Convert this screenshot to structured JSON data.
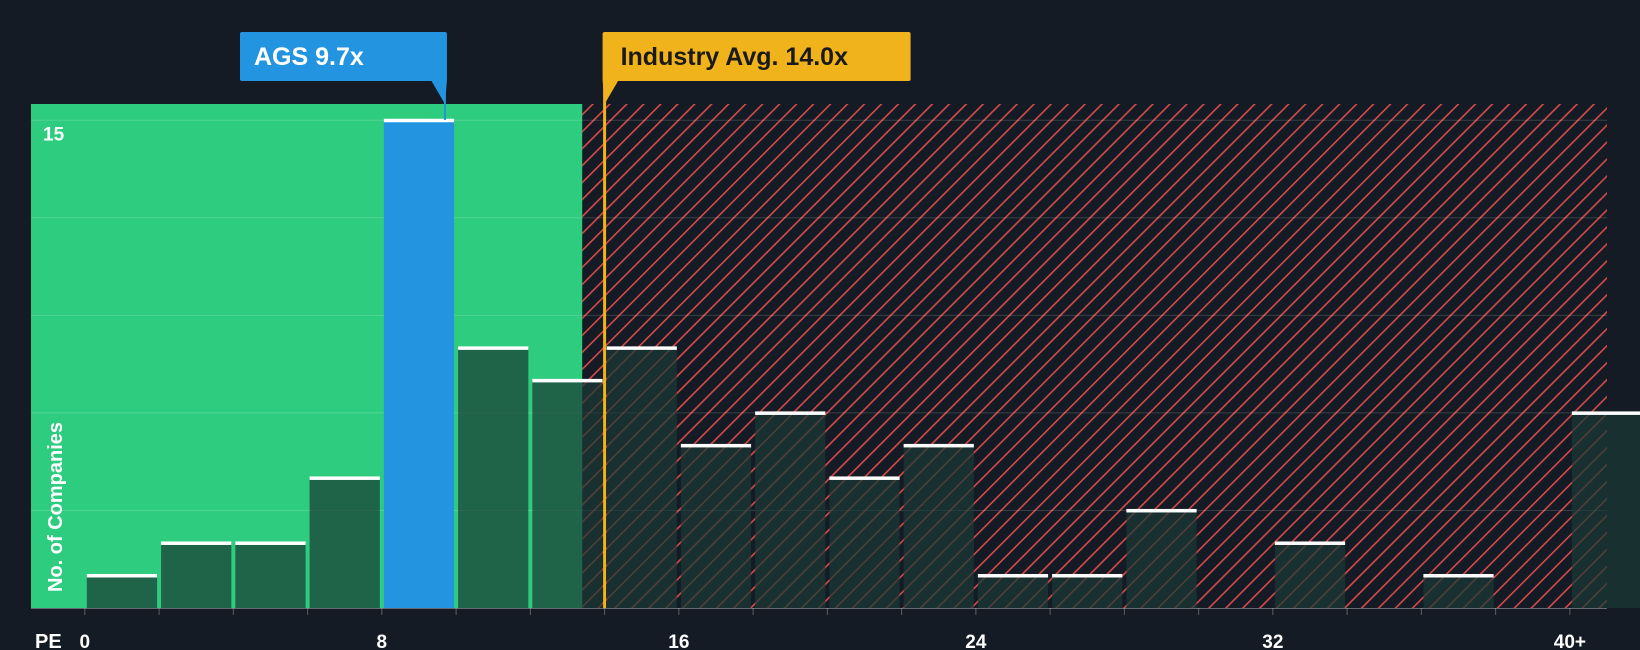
{
  "colors": {
    "background": "#151b24",
    "undervalued_zone": "#2ecc7e",
    "overvalued_hatch": "#d64a4a",
    "highlight_bar": "#2394e0",
    "industry_line": "#f0b31c",
    "bar_fill_dark": "#1b3a34",
    "bar_cap": "#ffffff"
  },
  "chart_data": {
    "type": "bar",
    "xlabel": "PE",
    "ylabel": "No. of Companies",
    "x_ticks": [
      {
        "value": 0,
        "label": "0"
      },
      {
        "value": 8,
        "label": "8"
      },
      {
        "value": 16,
        "label": "16"
      },
      {
        "value": 24,
        "label": "24"
      },
      {
        "value": 32,
        "label": "32"
      },
      {
        "value": 40,
        "label": "40+"
      }
    ],
    "y_ticks": [
      {
        "value": 15,
        "label": "15"
      }
    ],
    "xlim": [
      -1.45,
      41.0
    ],
    "ylim": [
      0,
      15.5
    ],
    "bin_width": 2,
    "bins": [
      {
        "start": 0,
        "count": 1
      },
      {
        "start": 2,
        "count": 2
      },
      {
        "start": 4,
        "count": 2
      },
      {
        "start": 6,
        "count": 4
      },
      {
        "start": 8,
        "count": 15,
        "highlight": true
      },
      {
        "start": 10,
        "count": 8
      },
      {
        "start": 12,
        "count": 7
      },
      {
        "start": 14,
        "count": 8
      },
      {
        "start": 16,
        "count": 5
      },
      {
        "start": 18,
        "count": 6
      },
      {
        "start": 20,
        "count": 4
      },
      {
        "start": 22,
        "count": 5
      },
      {
        "start": 24,
        "count": 1
      },
      {
        "start": 26,
        "count": 1
      },
      {
        "start": 28,
        "count": 3
      },
      {
        "start": 30,
        "count": 0
      },
      {
        "start": 32,
        "count": 2
      },
      {
        "start": 34,
        "count": 0
      },
      {
        "start": 36,
        "count": 1
      },
      {
        "start": 38,
        "count": 0
      },
      {
        "start": 40,
        "count": 6
      }
    ],
    "company": {
      "label": "AGS 9.7x",
      "value": 9.7
    },
    "industry_avg": {
      "label": "Industry Avg. 14.0x",
      "value": 14.0
    },
    "undervalued_zone": {
      "from": -1.45,
      "to": 13.4
    },
    "grid": true
  }
}
